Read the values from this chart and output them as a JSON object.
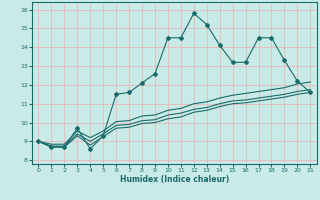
{
  "xlabel": "Humidex (Indice chaleur)",
  "xlim": [
    -0.5,
    21.5
  ],
  "ylim": [
    7.8,
    16.4
  ],
  "xticks": [
    0,
    1,
    2,
    3,
    4,
    5,
    6,
    7,
    8,
    9,
    10,
    11,
    12,
    13,
    14,
    15,
    16,
    17,
    18,
    19,
    20,
    21
  ],
  "yticks": [
    8,
    9,
    10,
    11,
    12,
    13,
    14,
    15,
    16
  ],
  "bg_color": "#c8ebe8",
  "grid_color": "#e8b8b8",
  "line_color": "#1a6b6b",
  "line1": [
    9.0,
    8.7,
    8.7,
    9.7,
    8.6,
    9.3,
    11.5,
    11.6,
    12.1,
    12.6,
    14.5,
    14.5,
    15.8,
    15.2,
    14.1,
    13.2,
    13.2,
    14.5,
    14.5,
    13.3,
    12.2,
    11.6
  ],
  "line2": [
    9.0,
    8.85,
    8.85,
    9.55,
    9.2,
    9.55,
    10.05,
    10.1,
    10.35,
    10.4,
    10.65,
    10.75,
    11.0,
    11.1,
    11.3,
    11.45,
    11.55,
    11.65,
    11.75,
    11.85,
    12.05,
    12.15
  ],
  "line3": [
    9.0,
    8.75,
    8.75,
    9.4,
    9.0,
    9.4,
    9.85,
    9.9,
    10.1,
    10.15,
    10.4,
    10.5,
    10.7,
    10.8,
    11.0,
    11.15,
    11.2,
    11.3,
    11.4,
    11.5,
    11.65,
    11.75
  ],
  "line4": [
    9.0,
    8.7,
    8.7,
    9.3,
    8.8,
    9.25,
    9.7,
    9.75,
    9.95,
    10.0,
    10.2,
    10.3,
    10.55,
    10.65,
    10.85,
    11.0,
    11.05,
    11.15,
    11.25,
    11.35,
    11.5,
    11.6
  ]
}
